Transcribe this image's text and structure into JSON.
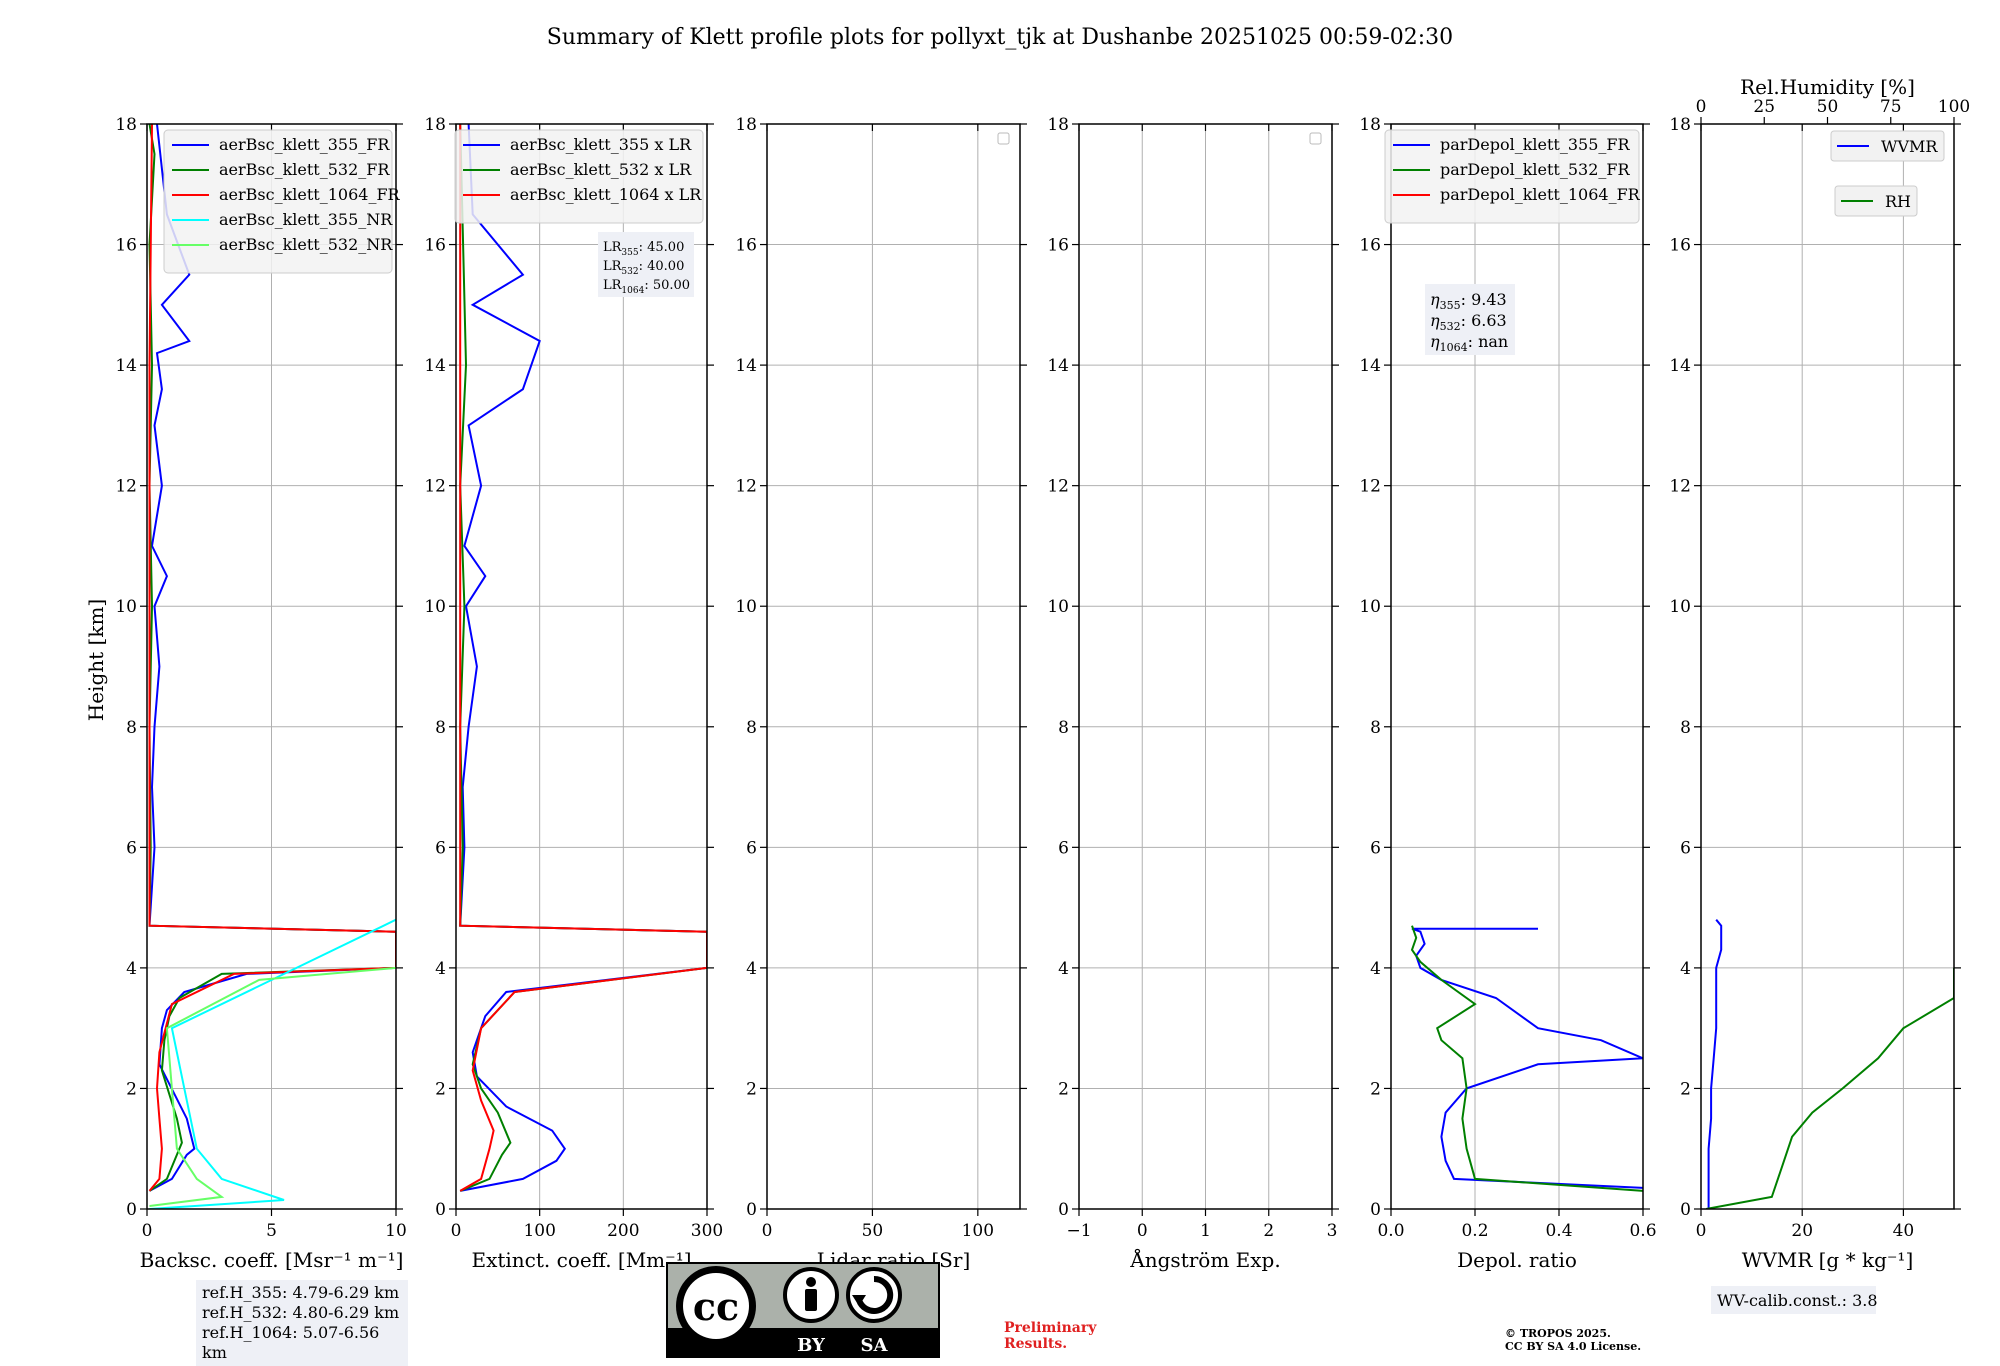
{
  "title": "Summary of Klett profile plots for pollyxt_tjk at Dushanbe 20251025 00:59-02:30",
  "ylabel": "Height [km]",
  "colors": {
    "c355": "#0000ff",
    "c532": "#008000",
    "c1064": "#ff0000",
    "c355NR": "#00ffff",
    "c532NR": "#66ff66",
    "bg": "#ffffff",
    "legend_bg": "#f2f2f2",
    "info_bg": "#eef0f6",
    "preliminary": "#e02020"
  },
  "icons": {
    "license": "cc-by-sa-icon"
  },
  "chart_data": [
    {
      "type": "line",
      "xlabel": "Backsc. coeff. [Msr⁻¹ m⁻¹]",
      "xlim": [
        0,
        10
      ],
      "ylim": [
        0,
        18
      ],
      "xticks": [
        0,
        5,
        10
      ],
      "yticks": [
        0,
        2,
        4,
        6,
        8,
        10,
        12,
        14,
        16,
        18
      ],
      "grid": true,
      "legend": "upper-right",
      "series": [
        {
          "name": "aerBsc_klett_355_FR",
          "color": "c355",
          "x": [
            0.1,
            1.0,
            1.6,
            1.9,
            1.6,
            0.5,
            0.6,
            0.8,
            1.5,
            4,
            10,
            10,
            0.1,
            0.3,
            0.2,
            0.3,
            0.5,
            0.3,
            0.8,
            0.2,
            0.6,
            0.3,
            0.6,
            0.4,
            1.7,
            0.6,
            1.7,
            0.8,
            0.4
          ],
          "y": [
            0.3,
            0.5,
            0.9,
            1.0,
            1.5,
            2.4,
            3.0,
            3.3,
            3.6,
            3.9,
            4.0,
            4.6,
            4.7,
            6.0,
            7.0,
            8.0,
            9.0,
            10.0,
            10.5,
            11.0,
            12.0,
            13.0,
            13.6,
            14.2,
            14.4,
            15.0,
            15.5,
            16.5,
            18.0
          ]
        },
        {
          "name": "aerBsc_klett_532_FR",
          "color": "c532",
          "x": [
            0.1,
            0.8,
            1.2,
            1.4,
            1.2,
            0.6,
            0.7,
            0.9,
            1.3,
            3,
            10,
            10,
            0.1,
            0.15,
            0.1,
            0.2,
            0.1,
            0.2,
            0.1,
            0.3,
            0.1
          ],
          "y": [
            0.3,
            0.5,
            0.9,
            1.1,
            1.5,
            2.3,
            2.8,
            3.2,
            3.5,
            3.9,
            4.0,
            4.6,
            4.7,
            6.0,
            8.0,
            10.0,
            12.0,
            14.0,
            16.0,
            17.5,
            18.0
          ]
        },
        {
          "name": "aerBsc_klett_1064_FR",
          "color": "c1064",
          "x": [
            0.1,
            0.5,
            0.6,
            0.5,
            0.4,
            0.5,
            1.0,
            3.5,
            10,
            10,
            0.1,
            0.1,
            0.1,
            0.2
          ],
          "y": [
            0.3,
            0.5,
            1.0,
            1.5,
            2.0,
            2.6,
            3.4,
            3.9,
            4.0,
            4.6,
            4.7,
            8.0,
            14.0,
            18.0
          ]
        },
        {
          "name": "aerBsc_klett_355_NR",
          "color": "c355NR",
          "x": [
            0.1,
            5.5,
            3.0,
            2.0,
            1.5,
            1.0,
            10
          ],
          "y": [
            0.0,
            0.15,
            0.5,
            1.0,
            2.0,
            3.0,
            4.8
          ]
        },
        {
          "name": "aerBsc_klett_532_NR",
          "color": "c532NR",
          "x": [
            0.1,
            3.0,
            2.0,
            1.2,
            1.0,
            0.8,
            4.5,
            10
          ],
          "y": [
            0.05,
            0.2,
            0.5,
            1.0,
            2.0,
            3.0,
            3.8,
            4.0
          ]
        }
      ]
    },
    {
      "type": "line",
      "xlabel": "Extinct. coeff. [Mm⁻¹]",
      "xlim": [
        0,
        300
      ],
      "ylim": [
        0,
        18
      ],
      "xticks": [
        0,
        100,
        200,
        300
      ],
      "yticks": [
        0,
        2,
        4,
        6,
        8,
        10,
        12,
        14,
        16,
        18
      ],
      "grid": true,
      "legend": "upper-right",
      "series": [
        {
          "name": "aerBsc_klett_355 x LR",
          "color": "c355",
          "x": [
            5,
            80,
            120,
            130,
            115,
            60,
            25,
            20,
            35,
            60,
            300,
            300,
            5,
            10,
            8,
            15,
            25,
            12,
            35,
            10,
            30,
            15,
            80,
            100,
            20,
            80,
            20,
            15
          ],
          "y": [
            0.3,
            0.5,
            0.8,
            1.0,
            1.3,
            1.7,
            2.2,
            2.6,
            3.2,
            3.6,
            4.0,
            4.6,
            4.7,
            6.0,
            7.0,
            8.0,
            9.0,
            10.0,
            10.5,
            11.0,
            12.0,
            13.0,
            13.6,
            14.4,
            15.0,
            15.5,
            16.5,
            18.0
          ]
        },
        {
          "name": "aerBsc_klett_532 x LR",
          "color": "c532",
          "x": [
            5,
            40,
            55,
            65,
            50,
            30,
            20,
            30,
            70,
            300,
            300,
            5,
            8,
            5,
            10,
            5,
            12,
            5
          ],
          "y": [
            0.3,
            0.5,
            0.9,
            1.1,
            1.6,
            2.0,
            2.4,
            3.0,
            3.6,
            4.0,
            4.6,
            4.7,
            6.0,
            8.0,
            10.0,
            12.0,
            14.0,
            18.0
          ]
        },
        {
          "name": "aerBsc_klett_1064 x LR",
          "color": "c1064",
          "x": [
            5,
            30,
            40,
            45,
            30,
            20,
            30,
            70,
            300,
            300,
            5,
            5,
            5
          ],
          "y": [
            0.3,
            0.5,
            1.0,
            1.3,
            1.8,
            2.3,
            3.0,
            3.6,
            4.0,
            4.6,
            4.7,
            10.0,
            18.0
          ]
        }
      ],
      "annotation": [
        {
          "sym": "LR",
          "sub": "355",
          "value": ": 45.00"
        },
        {
          "sym": "LR",
          "sub": "532",
          "value": ": 40.00"
        },
        {
          "sym": "LR",
          "sub": "1064",
          "value": ": 50.00"
        }
      ]
    },
    {
      "type": "line",
      "xlabel": "Lidar ratio [Sr]",
      "xlim": [
        0,
        120
      ],
      "ylim": [
        0,
        18
      ],
      "xticks": [
        0,
        50,
        100
      ],
      "yticks": [
        0,
        2,
        4,
        6,
        8,
        10,
        12,
        14,
        16,
        18
      ],
      "grid": true,
      "legend": "upper-right",
      "series": []
    },
    {
      "type": "line",
      "xlabel": "Ångström Exp.",
      "xlim": [
        -1,
        3
      ],
      "ylim": [
        0,
        18
      ],
      "xticks": [
        -1,
        0,
        1,
        2,
        3
      ],
      "xtick_labels": [
        "−1",
        "0",
        "1",
        "2",
        "3"
      ],
      "yticks": [
        0,
        2,
        4,
        6,
        8,
        10,
        12,
        14,
        16,
        18
      ],
      "grid": true,
      "legend": "upper-right",
      "series": []
    },
    {
      "type": "line",
      "xlabel": "Depol. ratio",
      "xlim": [
        0,
        0.6
      ],
      "ylim": [
        0,
        18
      ],
      "xticks": [
        0,
        0.2,
        0.4,
        0.6
      ],
      "xtick_labels": [
        "0.0",
        "0.2",
        "0.4",
        "0.6"
      ],
      "yticks": [
        0,
        2,
        4,
        6,
        8,
        10,
        12,
        14,
        16,
        18
      ],
      "grid": true,
      "legend": "upper-right",
      "series": [
        {
          "name": "parDepol_klett_355_FR",
          "color": "c355",
          "x": [
            0.6,
            0.15,
            0.13,
            0.12,
            0.13,
            0.18,
            0.35,
            0.6,
            0.5,
            0.35,
            0.25,
            0.12,
            0.07,
            0.06,
            0.08,
            0.07,
            0.05,
            0.35
          ],
          "y": [
            0.35,
            0.5,
            0.8,
            1.2,
            1.6,
            2.0,
            2.4,
            2.5,
            2.8,
            3.0,
            3.5,
            3.8,
            4.0,
            4.2,
            4.4,
            4.6,
            4.65,
            4.65
          ]
        },
        {
          "name": "parDepol_klett_532_FR",
          "color": "c532",
          "x": [
            0.6,
            0.2,
            0.18,
            0.17,
            0.18,
            0.17,
            0.12,
            0.11,
            0.2,
            0.12,
            0.07,
            0.05,
            0.06,
            0.05
          ],
          "y": [
            0.3,
            0.5,
            1.0,
            1.5,
            2.0,
            2.5,
            2.8,
            3.0,
            3.4,
            3.8,
            4.1,
            4.3,
            4.5,
            4.7
          ]
        },
        {
          "name": "parDepol_klett_1064_FR",
          "color": "c1064",
          "x": [],
          "y": []
        }
      ],
      "annotation": [
        {
          "sym": "η",
          "sub": "355",
          "value": ": 9.43"
        },
        {
          "sym": "η",
          "sub": "532",
          "value": ": 6.63"
        },
        {
          "sym": "η",
          "sub": "1064",
          "value": ": nan"
        }
      ]
    },
    {
      "type": "line",
      "xlabel": "WVMR [g * kg⁻¹]",
      "x2label": "Rel.Humidity [%]",
      "xlim": [
        0,
        50
      ],
      "x2lim": [
        0,
        100
      ],
      "ylim": [
        0,
        18
      ],
      "xticks": [
        0,
        20,
        40
      ],
      "x2ticks": [
        0,
        25,
        50,
        75,
        100
      ],
      "yticks": [
        0,
        2,
        4,
        6,
        8,
        10,
        12,
        14,
        16,
        18
      ],
      "grid": true,
      "series": [
        {
          "name": "WVMR",
          "color": "c355",
          "x": [
            1.5,
            1.5,
            1.5,
            2,
            2,
            2.5,
            3,
            3,
            3,
            4,
            4,
            4,
            3
          ],
          "y": [
            0,
            0.5,
            1.0,
            1.5,
            2.0,
            2.5,
            3.0,
            3.5,
            4.0,
            4.3,
            4.5,
            4.7,
            4.8
          ]
        },
        {
          "name": "RH",
          "color": "c532",
          "x": [
            1,
            14,
            16,
            18,
            22,
            28,
            35,
            40,
            50,
            50
          ],
          "y": [
            0,
            0.2,
            0.7,
            1.2,
            1.6,
            2.0,
            2.5,
            3.0,
            3.5,
            4.0
          ]
        }
      ],
      "annotation_text": "WV-calib.const.: 3.8"
    }
  ],
  "refh": [
    "ref.H_355: 4.79-6.29 km",
    "ref.H_532: 4.80-6.29 km",
    "ref.H_1064: 5.07-6.56 km"
  ],
  "cc": {
    "cc": "cc",
    "by": "BY",
    "sa": "SA"
  },
  "preliminary": [
    "Preliminary",
    "Results."
  ],
  "tropos": [
    "© TROPOS 2025.",
    "CC BY SA 4.0 License."
  ]
}
